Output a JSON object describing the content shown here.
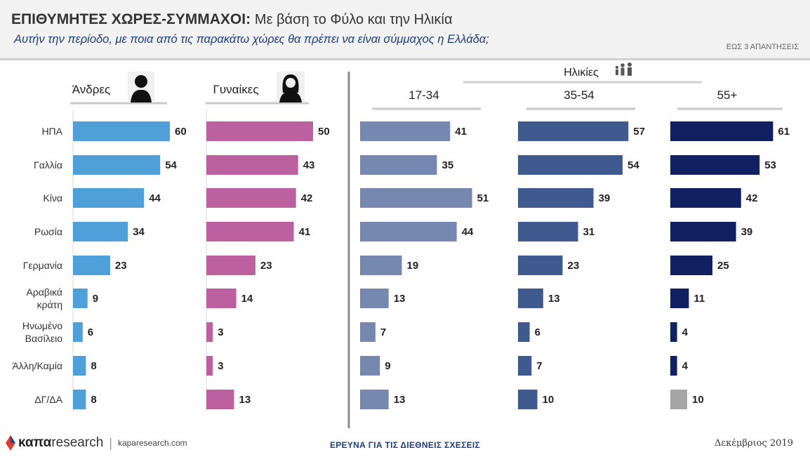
{
  "header": {
    "title_bold": "ΕΠΙΘΥΜΗΤΕΣ ΧΩΡΕΣ-ΣΥΜΜΑΧΟΙ:",
    "title_rest": "Με βάση το Φύλο και την Ηλικία",
    "subtitle": "Αυτήν την περίοδο, με ποια από τις παρακάτω χώρες θα πρέπει να είναι σύμμαχος η Ελλάδα;",
    "note": "ΕΩΣ 3 ΑΠΑΝΤΗΣΕΙΣ"
  },
  "footer": {
    "logo_a": "καπα",
    "logo_b": "research",
    "url": "kaparesearch.com",
    "center": "ΕΡΕΥΝΑ ΓΙΑ ΤΙΣ ΔΙΕΘΝΕΙΣ ΣΧΕΣΕΙΣ",
    "date": "Δεκέμβριος 2019"
  },
  "chart_data": {
    "type": "bar",
    "orientation": "horizontal",
    "group_label": "Ηλικίες",
    "categories": [
      [
        "ΗΠΑ"
      ],
      [
        "Γαλλία"
      ],
      [
        "Κίνα"
      ],
      [
        "Ρωσία"
      ],
      [
        "Γερμανία"
      ],
      [
        "Αραβικά",
        "κράτη"
      ],
      [
        "Ηνωμένο",
        "Βασίλειο"
      ],
      [
        "Άλλη/Καμία"
      ],
      [
        "ΔΓ/ΔΑ"
      ]
    ],
    "series": [
      {
        "name": "Άνδρες",
        "color": "#4f9fd8",
        "icon": "man-icon",
        "values": [
          60,
          54,
          44,
          34,
          23,
          9,
          6,
          8,
          8
        ]
      },
      {
        "name": "Γυναίκες",
        "color": "#bd60a0",
        "icon": "woman-icon",
        "values": [
          50,
          43,
          42,
          41,
          23,
          14,
          3,
          3,
          13
        ]
      },
      {
        "name": "17-34",
        "color": "#7788b0",
        "values": [
          41,
          35,
          51,
          44,
          19,
          13,
          7,
          9,
          13
        ]
      },
      {
        "name": "35-54",
        "color": "#3f5a8f",
        "values": [
          57,
          54,
          39,
          31,
          23,
          13,
          6,
          7,
          10
        ]
      },
      {
        "name": "55+",
        "color": "#112061",
        "last_color": "#a6a6a6",
        "values": [
          61,
          53,
          42,
          39,
          25,
          11,
          4,
          4,
          10
        ]
      }
    ]
  }
}
